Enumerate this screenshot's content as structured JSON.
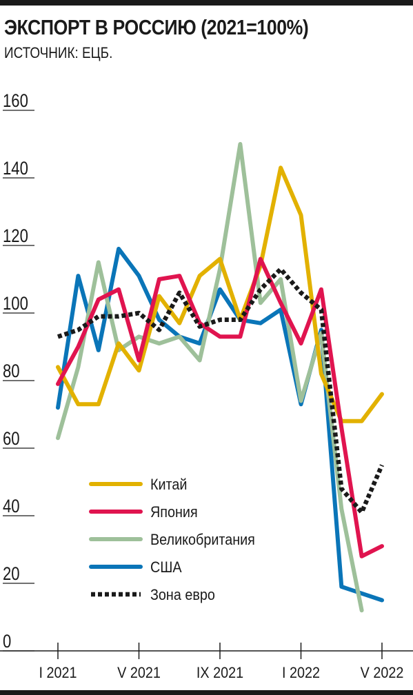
{
  "header": {
    "title": "ЭКСПОРТ В РОССИЮ (2021=100%)",
    "source": "ИСТОЧНИК: ЕЦБ."
  },
  "chart_data": {
    "type": "line",
    "title": "ЭКСПОРТ В РОССИЮ (2021=100%)",
    "subtitle": "ИСТОЧНИК: ЕЦБ.",
    "xlabel": "",
    "ylabel": "",
    "ylim": [
      0,
      160
    ],
    "yticks": [
      0,
      20,
      40,
      60,
      80,
      100,
      120,
      140,
      160
    ],
    "ytick_labels": [
      "0",
      "20",
      "40",
      "60",
      "80",
      "100",
      "120",
      "140",
      "160"
    ],
    "x": [
      "I 2021",
      "II 2021",
      "III 2021",
      "IV 2021",
      "V 2021",
      "VI 2021",
      "VII 2021",
      "VIII 2021",
      "IX 2021",
      "X 2021",
      "XI 2021",
      "XII 2021",
      "I 2022",
      "II 2022",
      "III 2022",
      "IV 2022",
      "V 2022"
    ],
    "xtick_labels": [
      "I 2021",
      "V 2021",
      "IX 2021",
      "I 2022",
      "V 2022"
    ],
    "xtick_indices": [
      0,
      4,
      8,
      12,
      16
    ],
    "grid": false,
    "legend_position": "bottom-left",
    "series": [
      {
        "name": "Китай",
        "color": "#e2b100",
        "dashed": false,
        "values": [
          84,
          73,
          73,
          91,
          83,
          105,
          97,
          111,
          116,
          98,
          114,
          143,
          129,
          82,
          68,
          68,
          76
        ]
      },
      {
        "name": "Япония",
        "color": "#e0144f",
        "dashed": false,
        "values": [
          79,
          90,
          104,
          107,
          86,
          110,
          111,
          97,
          93,
          93,
          116,
          103,
          91,
          107,
          66,
          28,
          31
        ]
      },
      {
        "name": "Великобритания",
        "color": "#9ec09a",
        "dashed": false,
        "values": [
          63,
          84,
          115,
          89,
          93,
          91,
          93,
          86,
          113,
          150,
          103,
          110,
          74,
          94,
          42,
          12,
          null
        ]
      },
      {
        "name": "США",
        "color": "#0a75b8",
        "dashed": false,
        "values": [
          72,
          111,
          89,
          119,
          111,
          98,
          93,
          91,
          107,
          98,
          97,
          101,
          73,
          95,
          19,
          17,
          15
        ]
      },
      {
        "name": "Зона евро",
        "color": "#1a1a1a",
        "dashed": true,
        "values": [
          93,
          95,
          99,
          99,
          100,
          95,
          106,
          96,
          98,
          98,
          107,
          113,
          106,
          101,
          48,
          41,
          55
        ]
      }
    ]
  }
}
